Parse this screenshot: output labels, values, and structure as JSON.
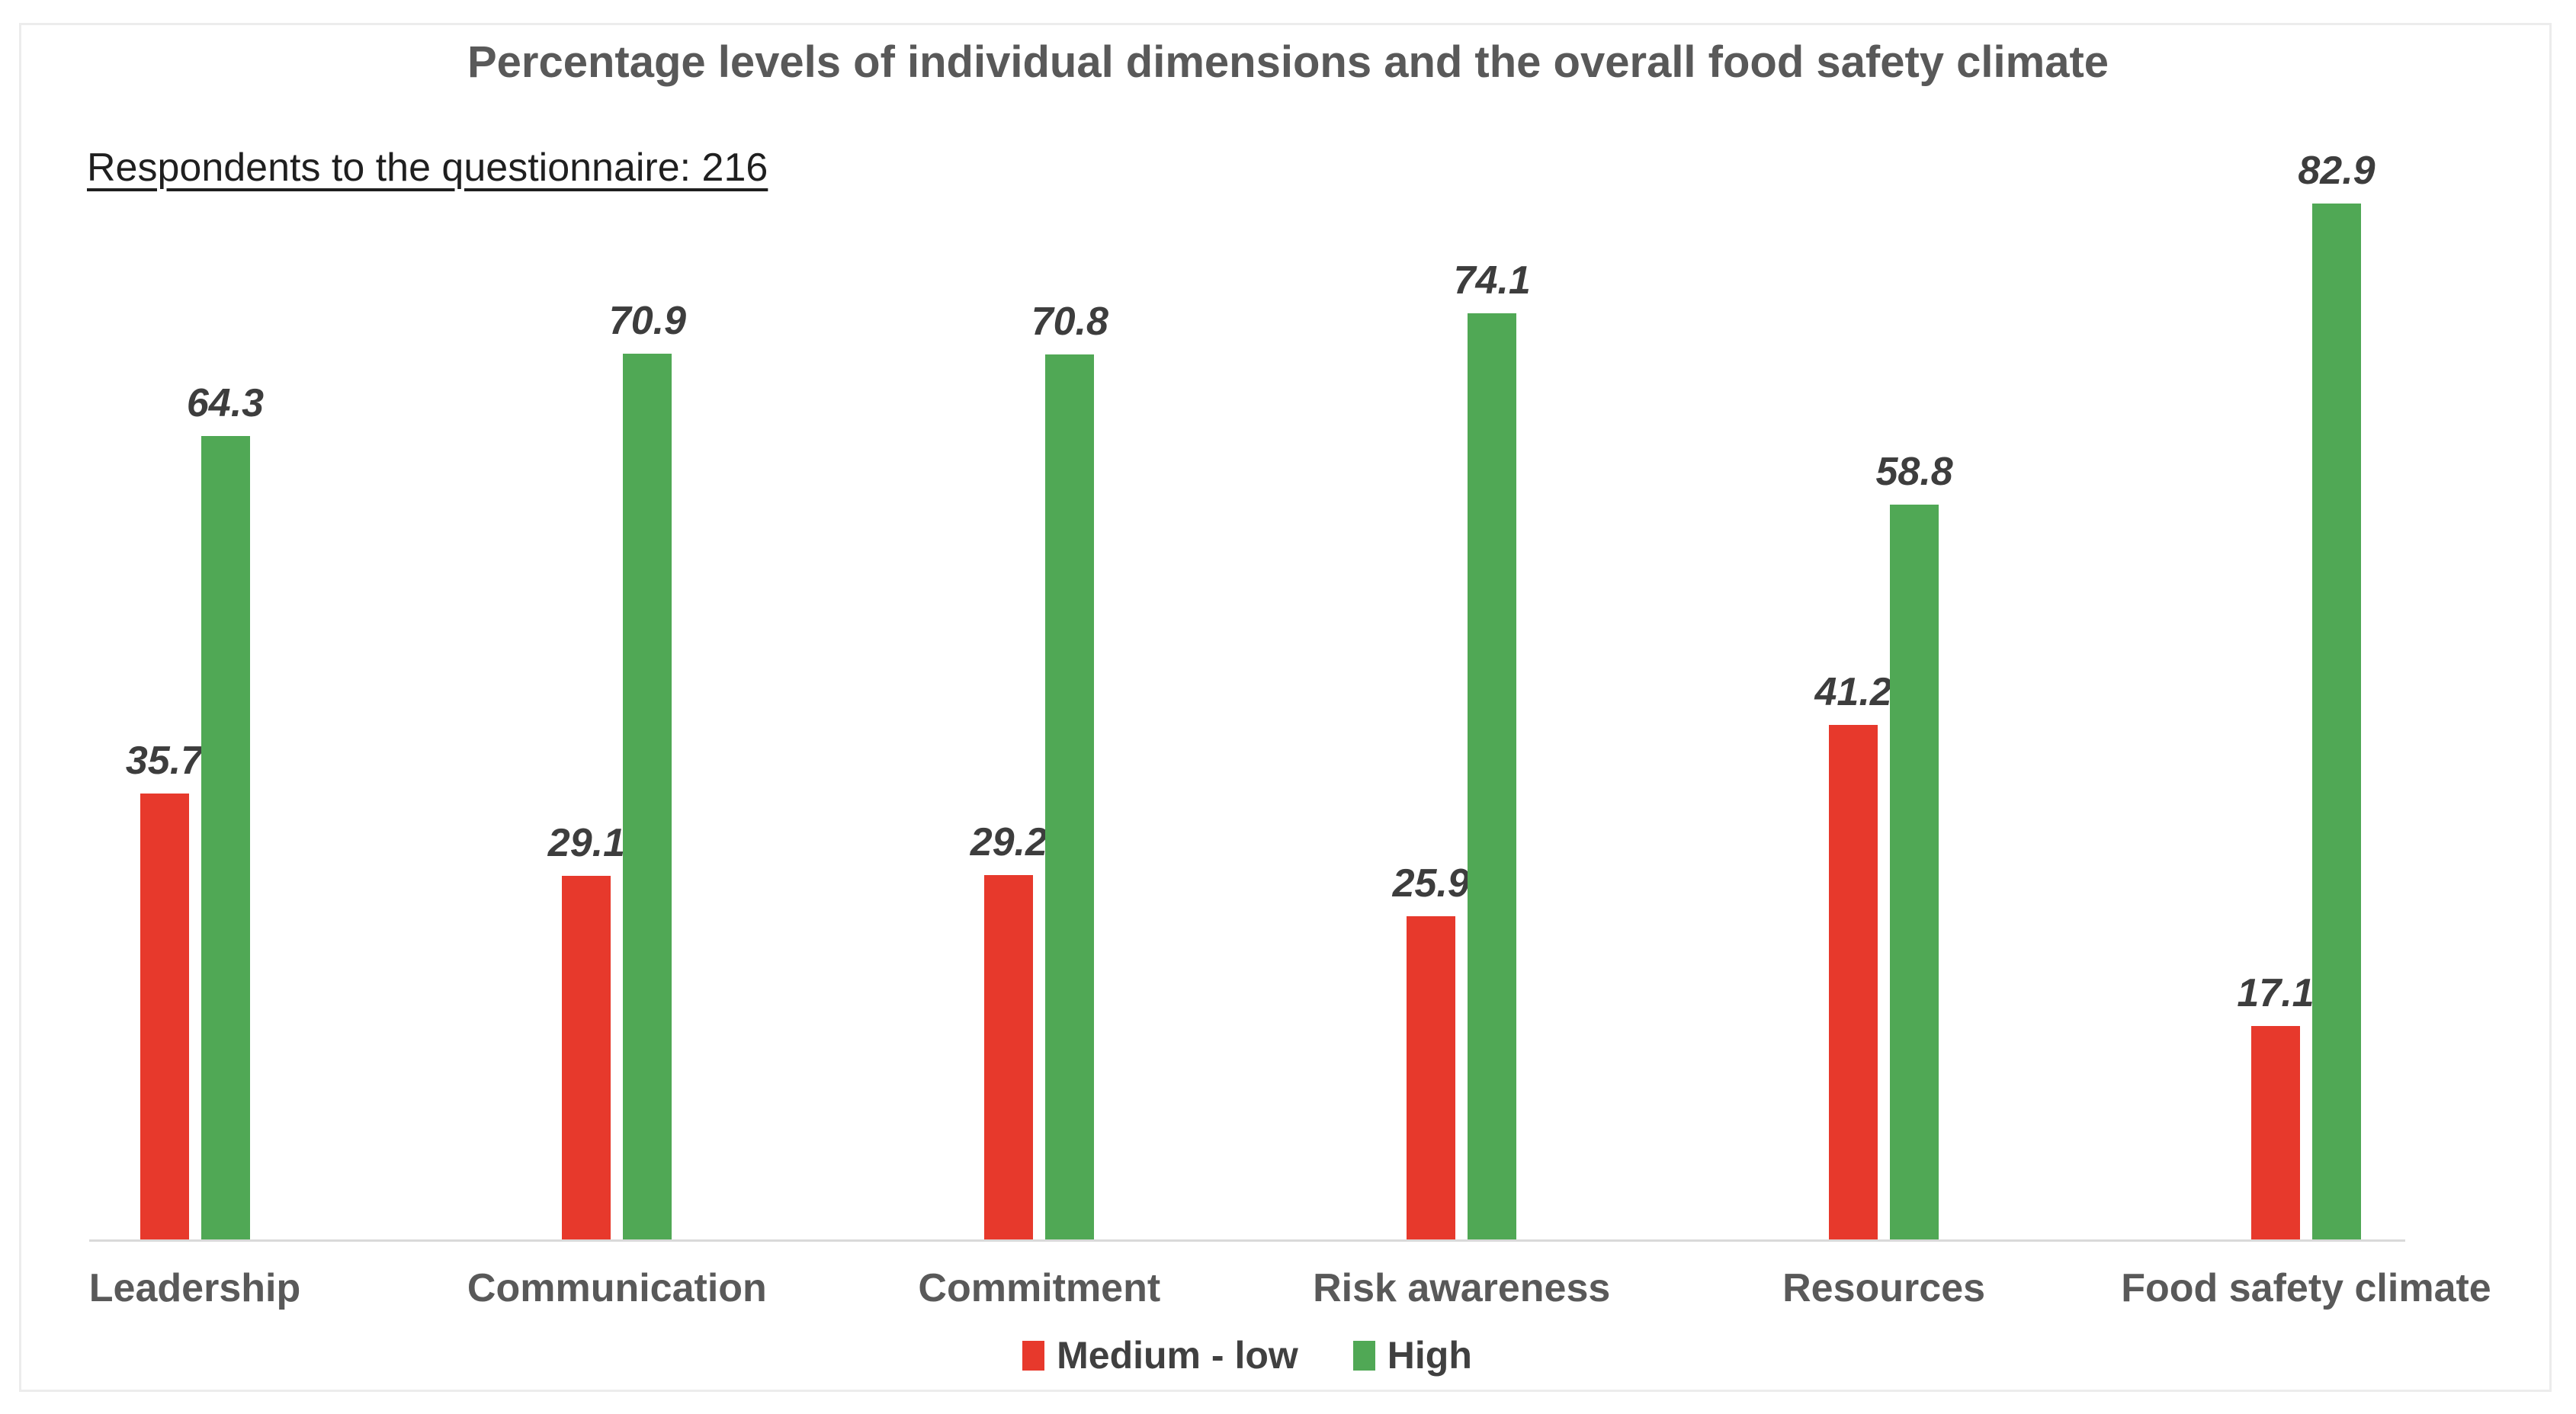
{
  "chart_data": {
    "type": "bar",
    "title": "Percentage levels of individual dimensions and the overall food safety climate",
    "annotation": "Respondents to the questionnaire: 216",
    "categories": [
      "Leadership",
      "Communication",
      "Commitment",
      "Risk awareness",
      "Resources",
      "Food safety climate"
    ],
    "series": [
      {
        "name": "Medium - low",
        "color": "#e7392c",
        "values": [
          35.7,
          29.1,
          29.2,
          25.9,
          41.2,
          17.1
        ]
      },
      {
        "name": "High",
        "color": "#50a855",
        "values": [
          64.3,
          70.9,
          70.8,
          74.1,
          58.8,
          82.9
        ]
      }
    ],
    "ylim": [
      0,
      90
    ],
    "grid": false,
    "y_axis_visible": false,
    "legend_position": "bottom",
    "value_labels": true,
    "colors": {
      "title_text": "#595959",
      "subtitle_text": "#1f1f1f",
      "value_label_text": "#3d3d3d",
      "category_text": "#595959",
      "legend_text": "#404040",
      "axis_line": "#d9d9d9",
      "panel_border": "#ececec",
      "background": "#ffffff"
    }
  }
}
